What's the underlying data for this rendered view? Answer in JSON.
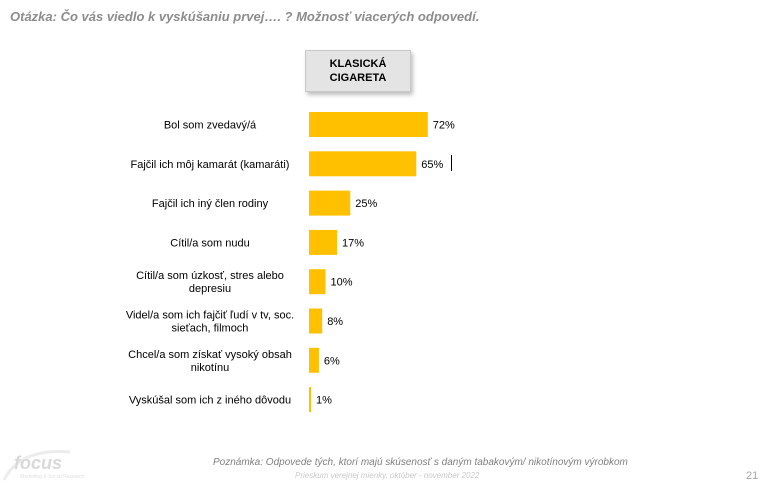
{
  "question": "Otázka: Čo vás viedlo k vyskúšaniu prvej…. ? Možnosť viacerých odpovedí.",
  "column_header": "KLASICKÁ\nCIGARETA",
  "note": "Poznámka: Odpovede tých, ktorí majú skúsenosť s daným tabakovým/ nikotínovým výrobkom",
  "source": "Prieskum verejnej mienky, október - november 2022",
  "page_number": "21",
  "logo": {
    "text": "focus",
    "subtitle": "Marketing & Social Research"
  },
  "colors": {
    "bar": "#FFC000",
    "header_bg": "#E4E4E4",
    "question": "#8C8C8C"
  },
  "chart_data": {
    "type": "bar",
    "orientation": "horizontal",
    "series_name": "KLASICKÁ CIGARETA",
    "categories": [
      [
        "Bol som zvedavý/á"
      ],
      [
        "Fajčil ich môj kamarát (kamaráti)"
      ],
      [
        "Fajčil ich iný člen rodiny"
      ],
      [
        "Cítil/a som nudu"
      ],
      [
        "Cítil/a som úzkosť, stres alebo",
        "depresiu"
      ],
      [
        "Videl/a som ich fajčiť ľudí v tv, soc.",
        "sieťach, filmoch"
      ],
      [
        "Chcel/a som získať vysoký obsah",
        "nikotínu"
      ],
      [
        "Vyskúšal som ich z iného dôvodu"
      ]
    ],
    "values": [
      72,
      65,
      25,
      17,
      10,
      8,
      6,
      1
    ],
    "value_labels": [
      "72%",
      "65%",
      "25%",
      "17%",
      "10%",
      "8%",
      "6%",
      "1%"
    ],
    "xlim": [
      0,
      100
    ],
    "grid": false,
    "legend": "none"
  }
}
